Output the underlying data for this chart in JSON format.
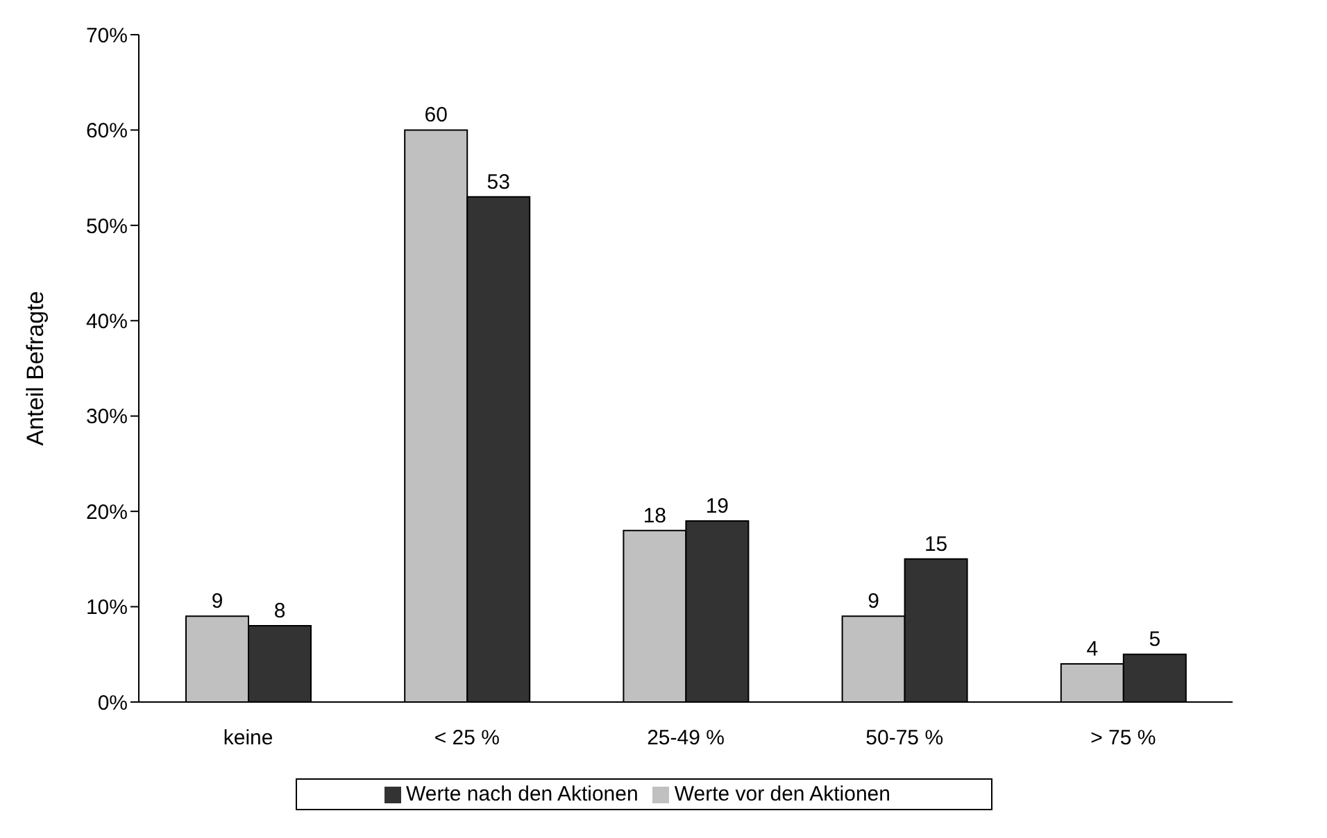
{
  "chart_data": {
    "type": "bar",
    "ylabel": "Anteil Befragte",
    "categories": [
      "keine",
      "< 25 %",
      "25-49 %",
      "50-75 %",
      "> 75 %"
    ],
    "series": [
      {
        "name": "Werte vor den Aktionen",
        "color": "#c0c0c0",
        "values": [
          9,
          60,
          18,
          9,
          4
        ]
      },
      {
        "name": "Werte nach den Aktionen",
        "color": "#333333",
        "values": [
          8,
          53,
          19,
          15,
          5
        ]
      }
    ],
    "ylim": [
      0,
      70
    ],
    "yticks": [
      {
        "value": 0,
        "label": "0%"
      },
      {
        "value": 10,
        "label": "10%"
      },
      {
        "value": 20,
        "label": "20%"
      },
      {
        "value": 30,
        "label": "30%"
      },
      {
        "value": 40,
        "label": "40%"
      },
      {
        "value": 50,
        "label": "50%"
      },
      {
        "value": 60,
        "label": "60%"
      },
      {
        "value": 70,
        "label": "70%"
      }
    ],
    "data_labels": true,
    "grid": false,
    "legend": "bottom"
  }
}
